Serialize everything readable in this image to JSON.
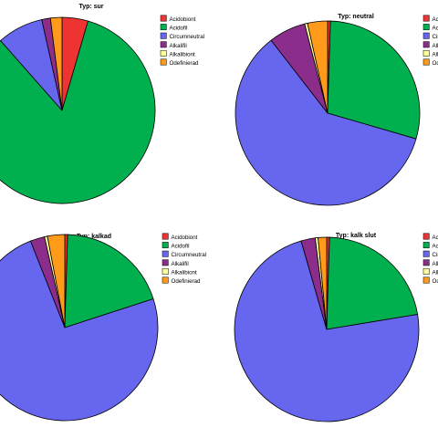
{
  "legend_categories": [
    "Acidobiont",
    "Acidofil",
    "Circumneutral",
    "Alkalifil",
    "Alkalibiont",
    "Odefinierad"
  ],
  "colors": [
    "#ee3333",
    "#00b04f",
    "#6666ee",
    "#8b2d8b",
    "#ffff99",
    "#ff9a1a"
  ],
  "chart_data": [
    {
      "type": "pie",
      "title": "Typ: sur",
      "categories": [
        "Acidobiont",
        "Acidofil",
        "Circumneutral",
        "Alkalifil",
        "Alkalibiont",
        "Odefinierad"
      ],
      "values": [
        4.5,
        84.0,
        8.0,
        1.5,
        0.0,
        2.0
      ]
    },
    {
      "type": "pie",
      "title": "Typ: neutral",
      "categories": [
        "Acidobiont",
        "Acidofil",
        "Circumneutral",
        "Alkalifil",
        "Alkalibiont",
        "Odefinierad"
      ],
      "values": [
        0.5,
        29.0,
        60.0,
        6.5,
        0.5,
        3.5
      ]
    },
    {
      "type": "pie",
      "title": "Typ: kalkad",
      "categories": [
        "Acidobiont",
        "Acidofil",
        "Circumneutral",
        "Alkalifil",
        "Alkalibiont",
        "Odefinierad"
      ],
      "values": [
        0.5,
        19.5,
        74.0,
        2.5,
        0.5,
        3.0
      ]
    },
    {
      "type": "pie",
      "title": "Typ: kalk slut",
      "categories": [
        "Acidobiont",
        "Acidofil",
        "Circumneutral",
        "Alkalifil",
        "Alkalibiont",
        "Odefinierad"
      ],
      "values": [
        0.5,
        22.0,
        73.5,
        2.5,
        0.5,
        1.5
      ]
    }
  ]
}
